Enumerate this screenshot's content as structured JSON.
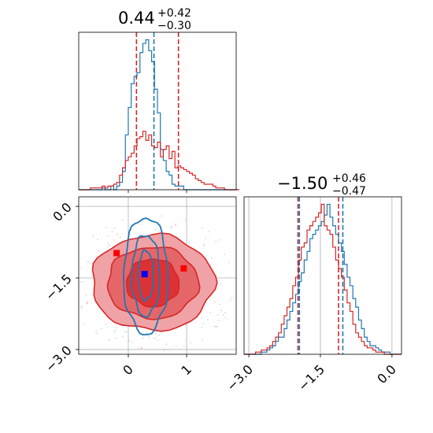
{
  "chart_data": [
    {
      "panel": "marginal-p1",
      "type": "histogram",
      "title": {
        "median": "0.44",
        "plus": "+0.42",
        "minus": "−0.30"
      },
      "xlim": [
        -0.85,
        1.85
      ],
      "xticks": [
        0,
        1
      ],
      "colors": {
        "blue": "#1f77b4",
        "red": "#d62728"
      },
      "bin_start": -0.85,
      "bin_width": 0.05,
      "series": [
        {
          "name": "",
          "color": "#1f77b4",
          "counts": [
            0,
            0,
            0,
            0,
            0,
            0,
            0,
            0,
            1,
            0,
            0,
            2,
            0,
            2,
            4,
            10,
            30,
            45,
            58,
            62,
            64,
            75,
            80,
            82,
            76,
            70,
            55,
            42,
            22,
            16,
            10,
            8,
            3,
            2,
            2,
            2,
            0,
            0,
            0,
            0,
            0,
            0,
            0,
            0,
            0,
            0,
            0,
            0,
            0,
            0,
            0,
            0,
            0,
            0,
            0
          ]
        },
        {
          "name": "",
          "color": "#d62728",
          "counts": [
            0,
            0,
            0,
            0,
            1,
            1,
            1,
            1,
            2,
            1,
            2,
            2,
            3,
            4,
            8,
            12,
            16,
            18,
            20,
            24,
            28,
            29,
            32,
            27,
            30,
            24,
            23,
            26,
            18,
            22,
            24,
            17,
            21,
            12,
            13,
            12,
            11,
            10,
            9,
            8,
            6,
            5,
            4,
            3,
            3,
            3,
            2,
            1,
            1,
            1,
            0,
            0,
            0,
            0,
            0
          ]
        }
      ],
      "quantile_lines": {
        "blue": [
          0.44
        ],
        "red": [
          0.14,
          0.86
        ]
      }
    },
    {
      "panel": "marginal-p2",
      "type": "histogram",
      "title": {
        "median": "−1.50",
        "plus": "+0.46",
        "minus": "−0.47"
      },
      "xlim": [
        -3.1,
        0.2
      ],
      "xticks": [
        -3.0,
        -1.5,
        0.0
      ],
      "xtick_labels": [
        "−3.0",
        "−1.5",
        "0.0"
      ],
      "bin_start": -3.1,
      "bin_width": 0.06,
      "series": [
        {
          "name": "",
          "color": "#1f77b4",
          "counts": [
            0,
            0,
            0,
            0,
            0,
            0,
            1,
            1,
            2,
            3,
            4,
            6,
            8,
            8,
            12,
            16,
            20,
            24,
            28,
            34,
            38,
            44,
            48,
            54,
            56,
            58,
            60,
            62,
            65,
            70,
            64,
            60,
            56,
            52,
            48,
            42,
            36,
            32,
            26,
            22,
            16,
            12,
            8,
            6,
            4,
            4,
            3,
            2,
            1,
            1,
            1,
            0,
            0,
            0,
            0
          ]
        },
        {
          "name": "",
          "color": "#d62728",
          "counts": [
            0,
            0,
            0,
            0,
            1,
            1,
            2,
            2,
            3,
            4,
            6,
            8,
            10,
            14,
            18,
            22,
            26,
            32,
            36,
            44,
            50,
            52,
            58,
            60,
            62,
            64,
            66,
            70,
            60,
            58,
            56,
            50,
            44,
            40,
            36,
            30,
            24,
            20,
            14,
            10,
            8,
            6,
            4,
            3,
            3,
            2,
            1,
            1,
            1,
            0,
            0,
            0,
            0,
            0,
            0
          ]
        }
      ],
      "quantile_lines": {
        "blue": [
          -1.94,
          -1.03
        ],
        "red": [
          -1.97,
          -1.12
        ]
      }
    },
    {
      "panel": "joint-p1-p2",
      "type": "contour",
      "xlim": [
        -0.85,
        1.85
      ],
      "ylim": [
        -3.1,
        0.2
      ],
      "xticks": [
        0,
        1
      ],
      "yticks": [
        0.0,
        -1.5,
        -3.0
      ],
      "ytick_labels": [
        "0.0",
        "−1.5",
        "−3.0"
      ],
      "series": [
        {
          "name": "",
          "color": "#1f77b4",
          "center": [
            0.3,
            -1.45
          ],
          "levels_radii": [
            [
              0.38,
              1.22
            ],
            [
              0.24,
              0.85
            ],
            [
              0.13,
              0.52
            ]
          ]
        },
        {
          "name": "",
          "color": "#d62728",
          "center": [
            0.42,
            -1.6
          ],
          "levels_radii": [
            [
              1.05,
              1.0
            ],
            [
              0.78,
              0.75
            ],
            [
              0.45,
              0.5
            ]
          ]
        }
      ],
      "markers": [
        {
          "color": "#0000ff",
          "x": 0.28,
          "y": -1.42
        },
        {
          "color": "#ff0000",
          "x": -0.2,
          "y": -0.98
        },
        {
          "color": "#ff0000",
          "x": 0.95,
          "y": -1.3
        }
      ],
      "grid": true
    }
  ]
}
